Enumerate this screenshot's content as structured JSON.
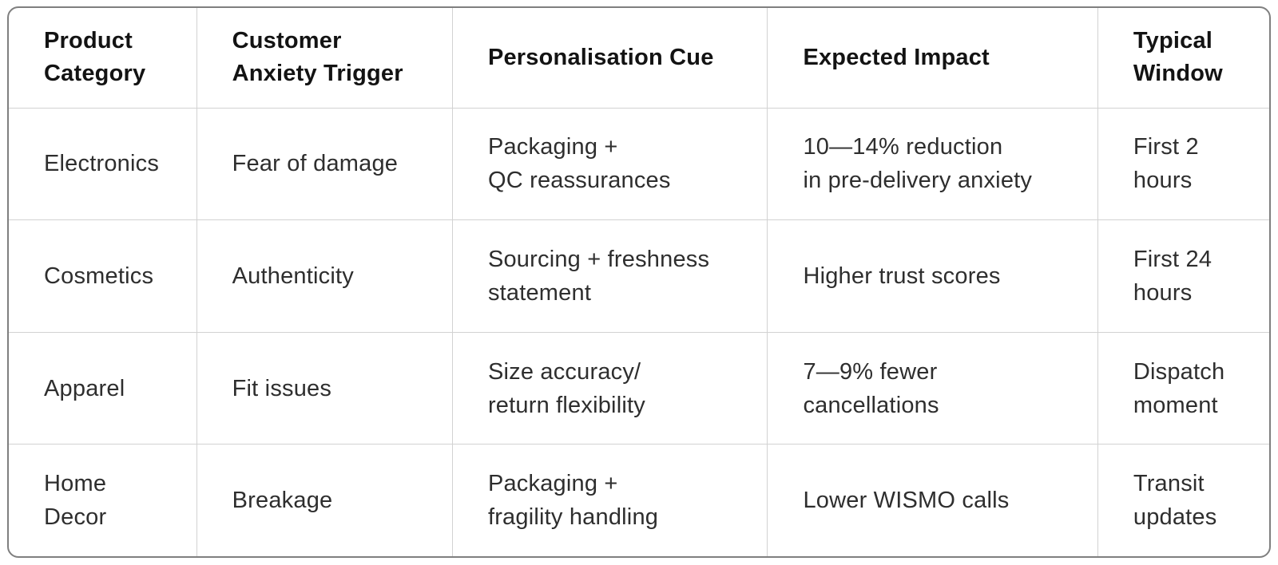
{
  "table": {
    "columns": [
      {
        "label": "Product\nCategory"
      },
      {
        "label": "Customer\nAnxiety Trigger"
      },
      {
        "label": "Personalisation Cue"
      },
      {
        "label": "Expected Impact"
      },
      {
        "label": "Typical\nWindow"
      }
    ],
    "rows": [
      {
        "cells": [
          "Electronics",
          "Fear of damage",
          "Packaging +\nQC reassurances",
          "10—14% reduction\nin pre-delivery anxiety",
          "First 2\nhours"
        ]
      },
      {
        "cells": [
          "Cosmetics",
          "Authenticity",
          "Sourcing + freshness\nstatement",
          "Higher trust scores",
          "First 24\nhours"
        ]
      },
      {
        "cells": [
          "Apparel",
          "Fit issues",
          "Size accuracy/\nreturn flexibility",
          "7—9% fewer\ncancellations",
          "Dispatch\nmoment"
        ]
      },
      {
        "cells": [
          "Home\nDecor",
          "Breakage",
          "Packaging +\nfragility handling",
          "Lower WISMO calls",
          "Transit\nupdates"
        ]
      }
    ]
  },
  "colors": {
    "outer_border": "#7f7f7f",
    "grid_line": "#d2d2d2",
    "header_text": "#131313",
    "body_text": "#2e2e2e",
    "background": "#ffffff"
  },
  "chart_data": {
    "type": "table",
    "title": "",
    "columns": [
      "Product Category",
      "Customer Anxiety Trigger",
      "Personalisation Cue",
      "Expected Impact",
      "Typical Window"
    ],
    "rows": [
      [
        "Electronics",
        "Fear of damage",
        "Packaging + QC reassurances",
        "10—14% reduction in pre-delivery anxiety",
        "First 2 hours"
      ],
      [
        "Cosmetics",
        "Authenticity",
        "Sourcing + freshness statement",
        "Higher trust scores",
        "First 24 hours"
      ],
      [
        "Apparel",
        "Fit issues",
        "Size accuracy/ return flexibility",
        "7—9% fewer cancellations",
        "Dispatch moment"
      ],
      [
        "Home Decor",
        "Breakage",
        "Packaging + fragility handling",
        "Lower WISMO calls",
        "Transit updates"
      ]
    ]
  }
}
